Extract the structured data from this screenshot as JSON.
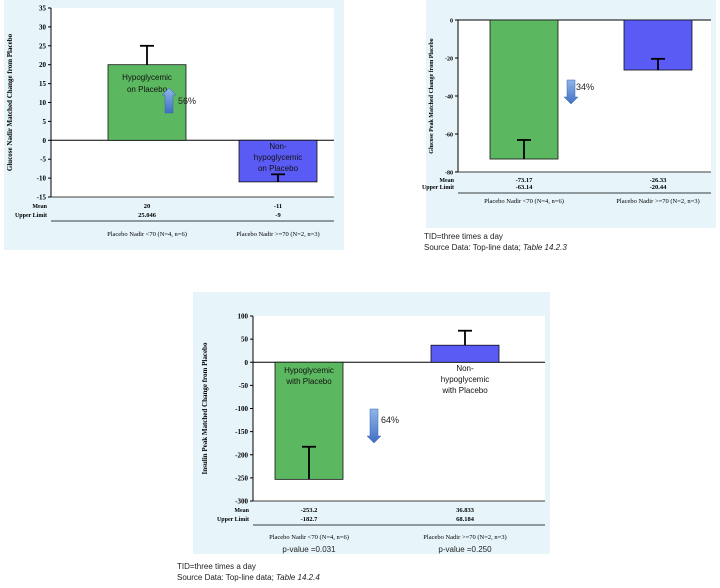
{
  "chart_data": [
    {
      "type": "bar",
      "ylabel": "Glucose Nadir Matched Change from Placebo",
      "ylim": [
        -15,
        35
      ],
      "yticks": [
        -15,
        -10,
        -5,
        0,
        5,
        10,
        15,
        20,
        25,
        30,
        35
      ],
      "categories": [
        "Placebo Nadir <70 (N=4, n=6)",
        "Placebo Nadir >=70 (N=2, n=3)"
      ],
      "values": [
        20,
        -11
      ],
      "error_upper": [
        25,
        -9
      ],
      "bar_colors": [
        "#5cb860",
        "#5a5af5"
      ],
      "bar_labels": [
        "Hypoglycemic on Placebo",
        "Non-hypoglycemic on Placebo"
      ],
      "arrow_direction": "up",
      "arrow_label": "56%",
      "table_rows": [
        {
          "label": "Mean",
          "cells": [
            "20",
            "-11"
          ]
        },
        {
          "label": "Upper Limit",
          "cells": [
            "25.046",
            "-9"
          ]
        }
      ]
    },
    {
      "type": "bar",
      "ylabel": "Glucose Peak Matched Change from Placebo",
      "ylim": [
        -80,
        0
      ],
      "yticks": [
        -80,
        -60,
        -40,
        -20,
        0
      ],
      "categories": [
        "Placebo Nadir <70 (N=4, n=6)",
        "Placebo Nadir >=70 (N=2, n=3)"
      ],
      "values": [
        -73.17,
        -26.33
      ],
      "error_upper": [
        -63.14,
        -20.44
      ],
      "bar_colors": [
        "#5cb860",
        "#5a5af5"
      ],
      "arrow_direction": "down",
      "arrow_label": "34%",
      "table_rows": [
        {
          "label": "Mean",
          "cells": [
            "-73.17",
            "-26.33"
          ]
        },
        {
          "label": "Upper Limit",
          "cells": [
            "-63.14",
            "-20.44"
          ]
        }
      ]
    },
    {
      "type": "bar",
      "ylabel": "Insulin Peak Matched Change from Placebo",
      "ylim": [
        -300,
        100
      ],
      "yticks": [
        -300,
        -250,
        -200,
        -150,
        -100,
        -50,
        0,
        50,
        100
      ],
      "categories": [
        "Placebo Nadir <70 (N=4, n=6)",
        "Placebo Nadir >=70 (N=2, n=3)"
      ],
      "values": [
        -253.2,
        36.833
      ],
      "error_upper": [
        -182.7,
        68.184
      ],
      "bar_colors": [
        "#5cb860",
        "#5a5af5"
      ],
      "bar_labels": [
        "Hypoglycemic with Placebo",
        "Non-hypoglycemic with Placebo"
      ],
      "arrow_direction": "down",
      "arrow_label": "64%",
      "pvalues": [
        "p-value =0.031",
        "p-value =0.250"
      ],
      "table_rows": [
        {
          "label": "Mean",
          "cells": [
            "-253.2",
            "36.833"
          ]
        },
        {
          "label": "Upper Limit",
          "cells": [
            "-182.7",
            "68.184"
          ]
        }
      ]
    }
  ],
  "notes": {
    "note2": {
      "line1": "TID=three times a day",
      "line2_prefix": "Source Data: Top-line data; ",
      "line2_table": "Table 14.2.3"
    },
    "note3": {
      "line1": "TID=three times a day",
      "line2_prefix": "Source Data: Top-line data; ",
      "line2_table": "Table 14.2.4"
    }
  }
}
